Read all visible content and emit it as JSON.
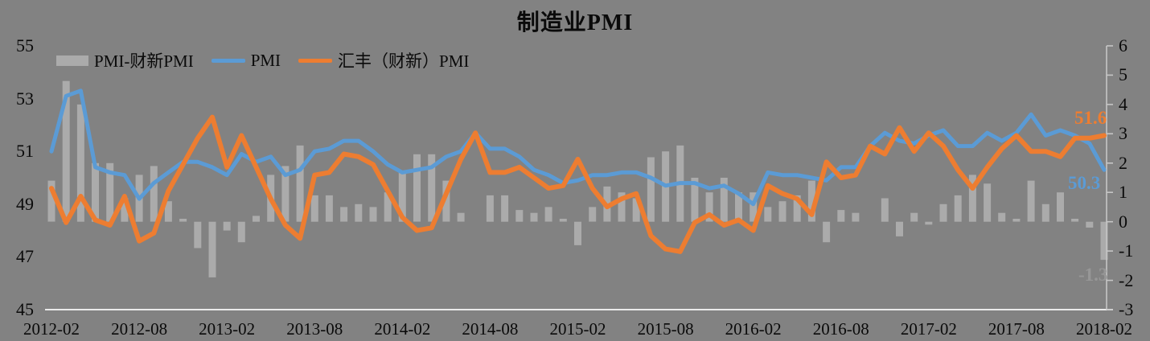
{
  "title": "制造业PMI",
  "legend": [
    {
      "label": "PMI-财新PMI",
      "swatch": "bar",
      "color": "#ABABAB"
    },
    {
      "label": "PMI",
      "swatch": "line",
      "color": "#5B9BD5"
    },
    {
      "label": "汇丰（财新）PMI",
      "swatch": "line",
      "color": "#ED7D31"
    }
  ],
  "colors": {
    "background": "#828282",
    "bar": "#ABABAB",
    "pmi_line": "#5B9BD5",
    "caixin_line": "#ED7D31",
    "x_axis_line": "#EAEAEA",
    "right_axis_line": "#C6C6C6",
    "text": "#0a0a0a"
  },
  "chart_data": {
    "type": "bar",
    "subtype": "combo bar+line, dual axis",
    "title": "制造业PMI",
    "xlabel": "",
    "ylabel": "",
    "grid": false,
    "legend_position": "top-left",
    "left_axis": {
      "min": 45,
      "max": 55,
      "tick_labels": [
        "55",
        "53",
        "51",
        "49",
        "47",
        "45"
      ]
    },
    "right_axis": {
      "min": -3,
      "max": 6,
      "tick_labels": [
        "6",
        "5",
        "4",
        "3",
        "2",
        "1",
        "0",
        "-1",
        "-2",
        "-3"
      ]
    },
    "x_tick_labels": [
      "2012-02",
      "2012-08",
      "2013-02",
      "2013-08",
      "2014-02",
      "2014-08",
      "2015-02",
      "2015-08",
      "2016-02",
      "2016-08",
      "2017-02",
      "2017-08",
      "2018-02"
    ],
    "categories": [
      "2012-02",
      "2012-03",
      "2012-04",
      "2012-05",
      "2012-06",
      "2012-07",
      "2012-08",
      "2012-09",
      "2012-10",
      "2012-11",
      "2012-12",
      "2013-01",
      "2013-02",
      "2013-03",
      "2013-04",
      "2013-05",
      "2013-06",
      "2013-07",
      "2013-08",
      "2013-09",
      "2013-10",
      "2013-11",
      "2013-12",
      "2014-01",
      "2014-02",
      "2014-03",
      "2014-04",
      "2014-05",
      "2014-06",
      "2014-07",
      "2014-08",
      "2014-09",
      "2014-10",
      "2014-11",
      "2014-12",
      "2015-01",
      "2015-02",
      "2015-03",
      "2015-04",
      "2015-05",
      "2015-06",
      "2015-07",
      "2015-08",
      "2015-09",
      "2015-10",
      "2015-11",
      "2015-12",
      "2016-01",
      "2016-02",
      "2016-03",
      "2016-04",
      "2016-05",
      "2016-06",
      "2016-07",
      "2016-08",
      "2016-09",
      "2016-10",
      "2016-11",
      "2016-12",
      "2017-01",
      "2017-02",
      "2017-03",
      "2017-04",
      "2017-05",
      "2017-06",
      "2017-07",
      "2017-08",
      "2017-09",
      "2017-10",
      "2017-11",
      "2017-12",
      "2018-01",
      "2018-02"
    ],
    "series": [
      {
        "name": "PMI-财新PMI",
        "type": "bar",
        "axis": "right",
        "color": "#ABABAB",
        "values": [
          1.4,
          4.8,
          4.0,
          2.0,
          2.0,
          0.8,
          1.6,
          1.9,
          0.7,
          0.1,
          -0.9,
          -1.9,
          -0.3,
          -0.7,
          0.2,
          1.6,
          1.9,
          2.6,
          0.9,
          0.9,
          0.5,
          0.6,
          0.5,
          1.0,
          1.7,
          2.3,
          2.3,
          1.4,
          0.3,
          0.0,
          0.9,
          0.9,
          0.4,
          0.3,
          0.5,
          0.1,
          -0.8,
          0.5,
          1.2,
          1.0,
          0.8,
          2.2,
          2.4,
          2.6,
          1.5,
          1.0,
          1.5,
          1.0,
          1.0,
          0.5,
          0.7,
          0.9,
          1.4,
          -0.7,
          0.4,
          0.3,
          0.0,
          0.8,
          -0.5,
          0.3,
          -0.1,
          0.6,
          0.9,
          1.6,
          1.3,
          0.3,
          0.1,
          1.4,
          0.6,
          1.0,
          0.1,
          -0.2,
          -1.3
        ]
      },
      {
        "name": "PMI",
        "type": "line",
        "axis": "left",
        "color": "#5B9BD5",
        "values": [
          51.0,
          53.1,
          53.3,
          50.4,
          50.2,
          50.1,
          49.2,
          49.8,
          50.2,
          50.6,
          50.6,
          50.4,
          50.1,
          50.9,
          50.6,
          50.8,
          50.1,
          50.3,
          51.0,
          51.1,
          51.4,
          51.4,
          51.0,
          50.5,
          50.2,
          50.3,
          50.4,
          50.8,
          51.0,
          51.7,
          51.1,
          51.1,
          50.8,
          50.3,
          50.1,
          49.8,
          49.9,
          50.1,
          50.1,
          50.2,
          50.2,
          50.0,
          49.7,
          49.8,
          49.8,
          49.6,
          49.7,
          49.4,
          49.0,
          50.2,
          50.1,
          50.1,
          50.0,
          49.9,
          50.4,
          50.4,
          51.2,
          51.7,
          51.4,
          51.3,
          51.6,
          51.8,
          51.2,
          51.2,
          51.7,
          51.4,
          51.7,
          52.4,
          51.6,
          51.8,
          51.6,
          51.3,
          50.3
        ]
      },
      {
        "name": "汇丰（财新）PMI",
        "type": "line",
        "axis": "left",
        "color": "#ED7D31",
        "values": [
          49.6,
          48.3,
          49.3,
          48.4,
          48.2,
          49.3,
          47.6,
          47.9,
          49.5,
          50.5,
          51.5,
          52.3,
          50.4,
          51.6,
          50.4,
          49.2,
          48.2,
          47.7,
          50.1,
          50.2,
          50.9,
          50.8,
          50.5,
          49.5,
          48.5,
          48.0,
          48.1,
          49.4,
          50.7,
          51.7,
          50.2,
          50.2,
          50.4,
          50.0,
          49.6,
          49.7,
          50.7,
          49.6,
          48.9,
          49.2,
          49.4,
          47.8,
          47.3,
          47.2,
          48.3,
          48.6,
          48.2,
          48.4,
          48.0,
          49.7,
          49.4,
          49.2,
          48.6,
          50.6,
          50.0,
          50.1,
          51.2,
          50.9,
          51.9,
          51.0,
          51.7,
          51.2,
          50.3,
          49.6,
          50.4,
          51.1,
          51.6,
          51.0,
          51.0,
          50.8,
          51.5,
          51.5,
          51.6
        ]
      }
    ],
    "data_labels": [
      {
        "series": "汇丰（财新）PMI",
        "category": "2018-02",
        "text": "51.6",
        "color": "#ED7D31"
      },
      {
        "series": "PMI",
        "category": "2018-02",
        "text": "50.3",
        "color": "#5B9BD5"
      },
      {
        "series": "PMI-财新PMI",
        "category": "2018-02",
        "text": "-1.3",
        "color": "#979797"
      }
    ]
  }
}
